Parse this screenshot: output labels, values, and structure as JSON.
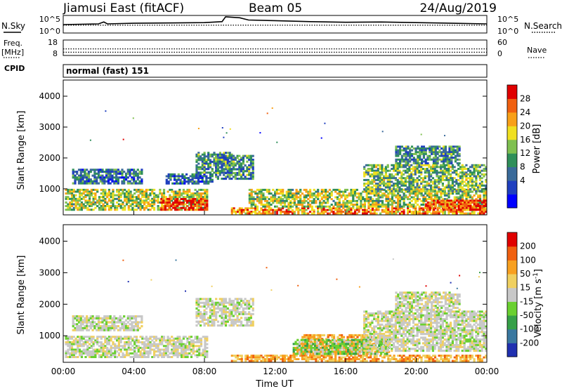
{
  "header": {
    "station": "Jiamusi East (fitACF)",
    "beam": "Beam 05",
    "date": "24/Aug/2019"
  },
  "left_labels": {
    "nsky": "N.Sky",
    "freq": "Freq.",
    "mhz": "[MHz]",
    "cpid": "CPID"
  },
  "right_labels": {
    "nsearch": "N.Search",
    "nave": "Nave"
  },
  "cpid_text": "normal (fast) 151",
  "chart_data": [
    {
      "type": "line",
      "name": "noise-panel",
      "y_left_ticks": [
        "10^5",
        "10^0"
      ],
      "y_right_ticks": [
        "10^5",
        "10^0"
      ],
      "x_range_hours": [
        0,
        24
      ],
      "series": [
        {
          "name": "N.Sky",
          "style": "solid",
          "points": [
            [
              0,
              2.4
            ],
            [
              1,
              2.5
            ],
            [
              2,
              2.6
            ],
            [
              2.3,
              3.2
            ],
            [
              2.5,
              2.6
            ],
            [
              4,
              2.8
            ],
            [
              6,
              2.9
            ],
            [
              8,
              3.0
            ],
            [
              9,
              3.3
            ],
            [
              9.2,
              4.8
            ],
            [
              10,
              4.5
            ],
            [
              10.5,
              3.8
            ],
            [
              12,
              3.6
            ],
            [
              14,
              3.3
            ],
            [
              16,
              3.1
            ],
            [
              18,
              3.2
            ],
            [
              20,
              3.0
            ],
            [
              22,
              2.8
            ],
            [
              24,
              2.6
            ]
          ]
        },
        {
          "name": "N.Search",
          "style": "dotted",
          "points": [
            [
              0,
              2.2
            ],
            [
              24,
              2.2
            ]
          ]
        }
      ]
    },
    {
      "type": "line",
      "name": "freq-panel",
      "y_left_ticks": [
        "18",
        "8"
      ],
      "y_right_ticks": [
        "60",
        "0"
      ],
      "ylim": [
        8,
        18
      ],
      "series": [
        {
          "name": "Freq.",
          "style": "dotted",
          "points": [
            [
              0,
              12.2
            ],
            [
              24,
              12.2
            ]
          ]
        },
        {
          "name": "Nave",
          "style": "dotted",
          "points": [
            [
              0,
              9.8
            ],
            [
              24,
              9.8
            ]
          ]
        }
      ]
    },
    {
      "type": "heatmap",
      "name": "power-panel",
      "ylabel": "Slant Range [km]",
      "y_ticks": [
        1000,
        2000,
        3000,
        4000
      ],
      "ylim": [
        180,
        4500
      ],
      "x_range_hours": [
        0,
        24
      ],
      "colorbar": {
        "label": "Power [dB]",
        "ticks": [
          "28",
          "24",
          "20",
          "16",
          "12",
          "8",
          "4"
        ],
        "colors": [
          "#0000ff",
          "#1f3fbf",
          "#3a6a9a",
          "#2f8f5a",
          "#7fc050",
          "#f0e020",
          "#f8a018",
          "#f06010",
          "#e00000"
        ]
      },
      "regions": [
        {
          "t0": 0.1,
          "t1": 8.2,
          "r0": 300,
          "r1": 1000,
          "level": 0.55
        },
        {
          "t0": 5.5,
          "t1": 8.2,
          "r0": 300,
          "r1": 700,
          "level": 0.95
        },
        {
          "t0": 0.5,
          "t1": 4.5,
          "r0": 1150,
          "r1": 1650,
          "level": 0.3
        },
        {
          "t0": 5.8,
          "t1": 8.5,
          "r0": 1150,
          "r1": 1500,
          "level": 0.3
        },
        {
          "t0": 7.5,
          "t1": 9.6,
          "r0": 1500,
          "r1": 2200,
          "level": 0.35
        },
        {
          "t0": 8.6,
          "t1": 10.8,
          "r0": 1300,
          "r1": 2100,
          "level": 0.35
        },
        {
          "t0": 9.5,
          "t1": 24,
          "r0": 180,
          "r1": 400,
          "level": 0.75
        },
        {
          "t0": 10.5,
          "t1": 24,
          "r0": 400,
          "r1": 1000,
          "level": 0.55
        },
        {
          "t0": 17.0,
          "t1": 24,
          "r0": 900,
          "r1": 1800,
          "level": 0.45
        },
        {
          "t0": 18.8,
          "t1": 22.5,
          "r0": 1800,
          "r1": 2400,
          "level": 0.35
        },
        {
          "t0": 20.5,
          "t1": 24,
          "r0": 300,
          "r1": 650,
          "level": 0.9
        }
      ]
    },
    {
      "type": "heatmap",
      "name": "velocity-panel",
      "ylabel": "Slant Range [km]",
      "xlabel": "Time UT",
      "y_ticks": [
        1000,
        2000,
        3000,
        4000
      ],
      "ylim": [
        180,
        4500
      ],
      "x_ticks": [
        "00:00",
        "04:00",
        "08:00",
        "12:00",
        "16:00",
        "20:00",
        "00:00"
      ],
      "x_range_hours": [
        0,
        24
      ],
      "colorbar": {
        "label": "Velocity [m s^-1]",
        "ticks": [
          "200",
          "100",
          "50",
          "15",
          "-15",
          "-50",
          "-100",
          "-200"
        ],
        "colors": [
          "#2030b0",
          "#3a78a0",
          "#36a048",
          "#6ad030",
          "#c8c8c8",
          "#f0d060",
          "#f8a020",
          "#f06010",
          "#e00000"
        ]
      },
      "regions": [
        {
          "t0": 0.1,
          "t1": 8.2,
          "r0": 300,
          "r1": 1000,
          "level": "gray"
        },
        {
          "t0": 0.5,
          "t1": 4.5,
          "r0": 1150,
          "r1": 1650,
          "level": "gray"
        },
        {
          "t0": 7.5,
          "t1": 10.8,
          "r0": 1300,
          "r1": 2200,
          "level": "gray"
        },
        {
          "t0": 9.5,
          "t1": 24,
          "r0": 180,
          "r1": 400,
          "level": "orange"
        },
        {
          "t0": 13.5,
          "t1": 17.5,
          "r0": 400,
          "r1": 1050,
          "level": "orange"
        },
        {
          "t0": 13.0,
          "t1": 18.5,
          "r0": 400,
          "r1": 900,
          "level": "green"
        },
        {
          "t0": 17.0,
          "t1": 24,
          "r0": 500,
          "r1": 1800,
          "level": "gray"
        },
        {
          "t0": 18.8,
          "t1": 22.5,
          "r0": 1800,
          "r1": 2400,
          "level": "gray"
        }
      ]
    }
  ]
}
